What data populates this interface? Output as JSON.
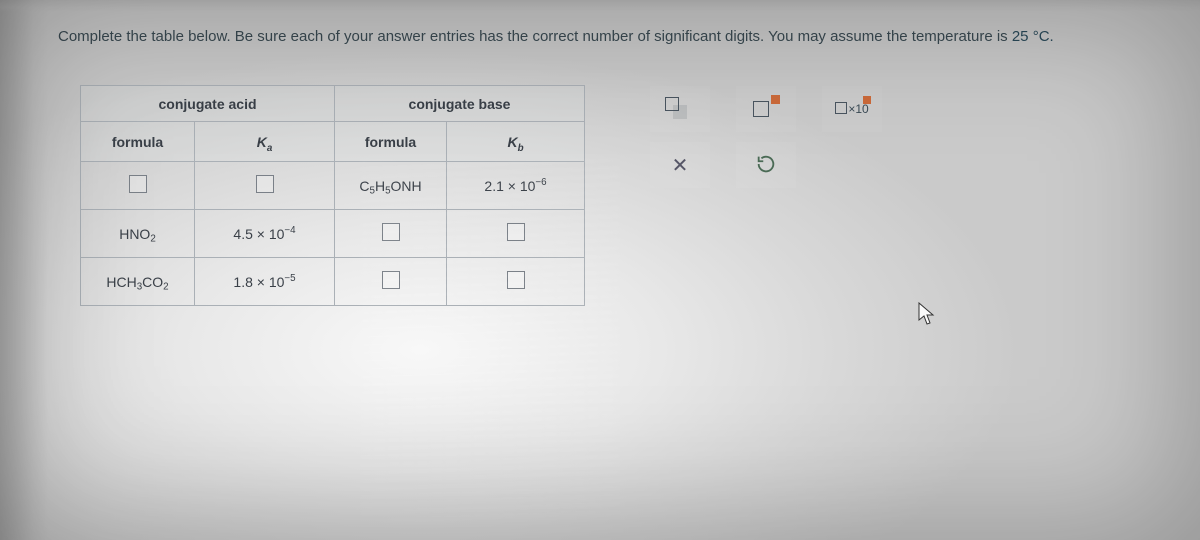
{
  "instruction": {
    "text_prefix": "Complete the table below. Be sure each of your answer entries has the correct number of significant digits. You may assume the temperature is ",
    "temperature": "25 °C."
  },
  "table": {
    "group_headers": {
      "acid": "conjugate acid",
      "base": "conjugate base"
    },
    "col_headers": {
      "formula_acid": "formula",
      "ka_html": "K<sub>a</sub>",
      "formula_base": "formula",
      "kb_html": "K<sub>b</sub>"
    },
    "rows": [
      {
        "acid_formula_html": "",
        "ka_html": "",
        "base_formula_html": "C<sub>5</sub>H<sub>5</sub>ONH",
        "kb_html": "2.1 × 10<sup>−6</sup>"
      },
      {
        "acid_formula_html": "HNO<sub>2</sub>",
        "ka_html": "4.5 × 10<sup>−4</sup>",
        "base_formula_html": "",
        "kb_html": ""
      },
      {
        "acid_formula_html": "HCH<sub>3</sub>CO<sub>2</sub>",
        "ka_html": "1.8 × 10<sup>−5</sup>",
        "base_formula_html": "",
        "kb_html": ""
      }
    ]
  },
  "tools": {
    "fill_label": "fill-blank",
    "superscript_label": "superscript",
    "x10_label": "×10 power",
    "clear_glyph": "✕",
    "reset_label": "reset"
  },
  "colors": {
    "border": "#aab0b6",
    "text": "#3a4048",
    "accent_orange": "#cc6a3a",
    "accent_green": "#4a6a55"
  }
}
